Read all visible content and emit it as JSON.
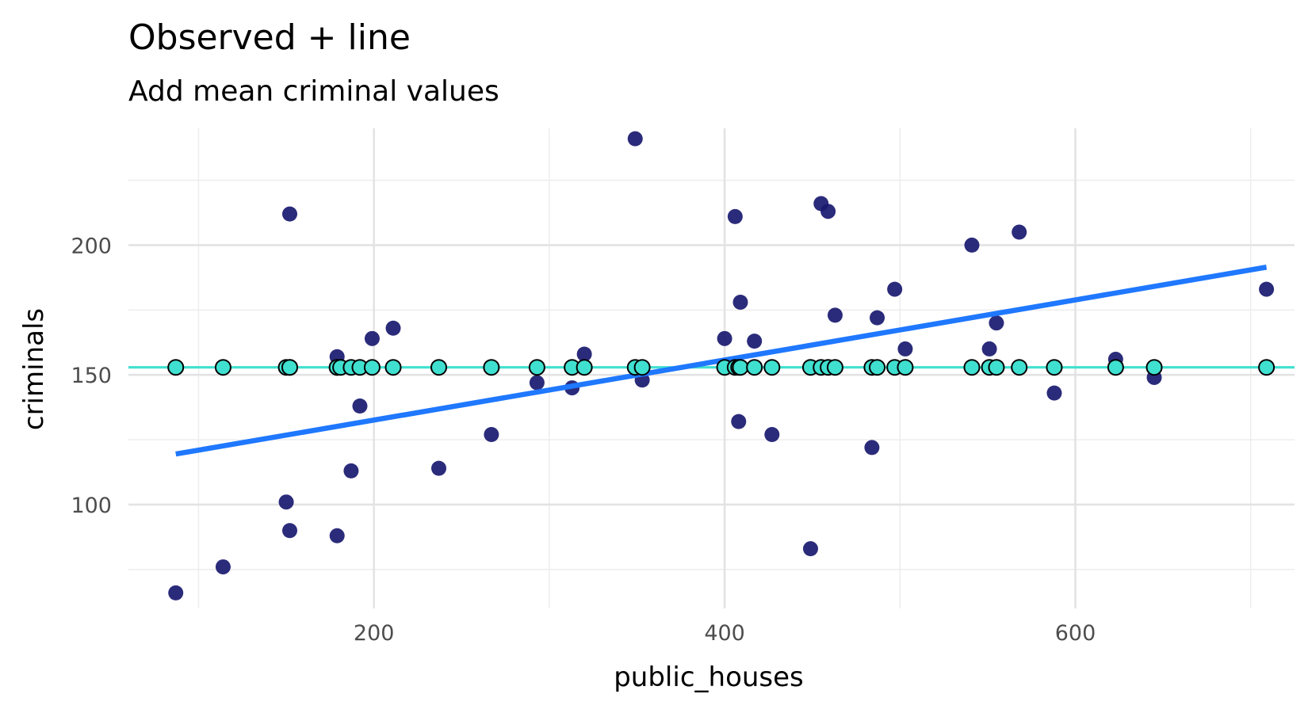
{
  "chart_data": {
    "type": "scatter",
    "title": "Observed + line",
    "subtitle": "Add mean criminal values",
    "xlabel": "public_houses",
    "ylabel": "criminals",
    "xlim": [
      60,
      725
    ],
    "ylim": [
      60,
      245
    ],
    "x_ticks": [
      200,
      400,
      600
    ],
    "x_minor_ticks": [
      100,
      300,
      500,
      700
    ],
    "y_ticks": [
      100,
      150,
      200
    ],
    "y_minor_ticks": [
      75,
      125,
      175,
      225
    ],
    "grid": true,
    "legend": "none",
    "colors": {
      "observed": "#191970",
      "fit_line": "#1f78ff",
      "mean_line": "#40e0d0",
      "mean_points": "#40e0d0"
    },
    "mean_value": 152.9,
    "fit_line": {
      "x": [
        87,
        709
      ],
      "y": [
        119.5,
        191.5
      ]
    },
    "series": [
      {
        "role": "observed",
        "x": [
          87,
          114,
          150,
          152,
          152,
          179,
          179,
          181,
          187,
          192,
          199,
          211,
          237,
          267,
          293,
          313,
          320,
          349,
          353,
          400,
          406,
          408,
          409,
          417,
          427,
          449,
          455,
          459,
          463,
          484,
          487,
          497,
          503,
          541,
          551,
          555,
          568,
          588,
          623,
          645,
          709
        ],
        "y": [
          66,
          76,
          101,
          90,
          212,
          157,
          88,
          153,
          113,
          138,
          164,
          168,
          114,
          127,
          147,
          145,
          158,
          241,
          148,
          164,
          211,
          132,
          178,
          163,
          127,
          83,
          216,
          213,
          173,
          122,
          172,
          183,
          160,
          200,
          160,
          170,
          205,
          143,
          156,
          149,
          183
        ]
      },
      {
        "role": "mean",
        "x": [
          87,
          114,
          150,
          152,
          152,
          179,
          179,
          181,
          187,
          192,
          199,
          211,
          237,
          267,
          293,
          313,
          320,
          349,
          353,
          400,
          406,
          408,
          409,
          417,
          427,
          449,
          455,
          459,
          463,
          484,
          487,
          497,
          503,
          541,
          551,
          555,
          568,
          588,
          623,
          645,
          709
        ],
        "y": [
          152.9,
          152.9,
          152.9,
          152.9,
          152.9,
          152.9,
          152.9,
          152.9,
          152.9,
          152.9,
          152.9,
          152.9,
          152.9,
          152.9,
          152.9,
          152.9,
          152.9,
          152.9,
          152.9,
          152.9,
          152.9,
          152.9,
          152.9,
          152.9,
          152.9,
          152.9,
          152.9,
          152.9,
          152.9,
          152.9,
          152.9,
          152.9,
          152.9,
          152.9,
          152.9,
          152.9,
          152.9,
          152.9,
          152.9,
          152.9,
          152.9
        ]
      }
    ]
  }
}
